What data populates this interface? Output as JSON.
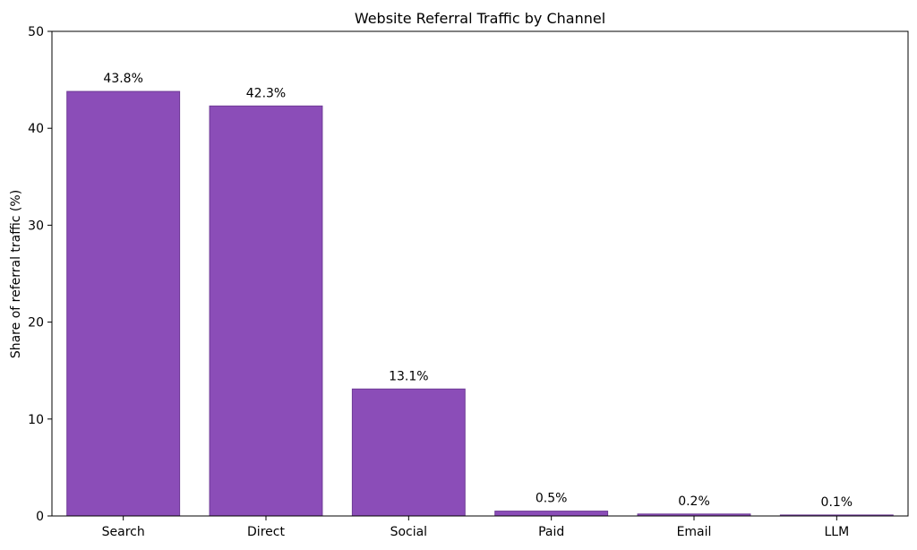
{
  "chart_data": {
    "type": "bar",
    "title": "Website Referral Traffic by Channel",
    "xlabel": "",
    "ylabel": "Share of referral traffic (%)",
    "categories": [
      "Search",
      "Direct",
      "Social",
      "Paid",
      "Email",
      "LLM"
    ],
    "values": [
      43.8,
      42.3,
      13.1,
      0.5,
      0.2,
      0.1
    ],
    "data_labels": [
      "43.8%",
      "42.3%",
      "13.1%",
      "0.5%",
      "0.2%",
      "0.1%"
    ],
    "ylim": [
      0,
      50
    ],
    "yticks": [
      0,
      10,
      20,
      30,
      40,
      50
    ],
    "grid": false,
    "legend": "none",
    "bar_color": "#8b4db8",
    "bar_edge_color": "#6e3a96"
  }
}
